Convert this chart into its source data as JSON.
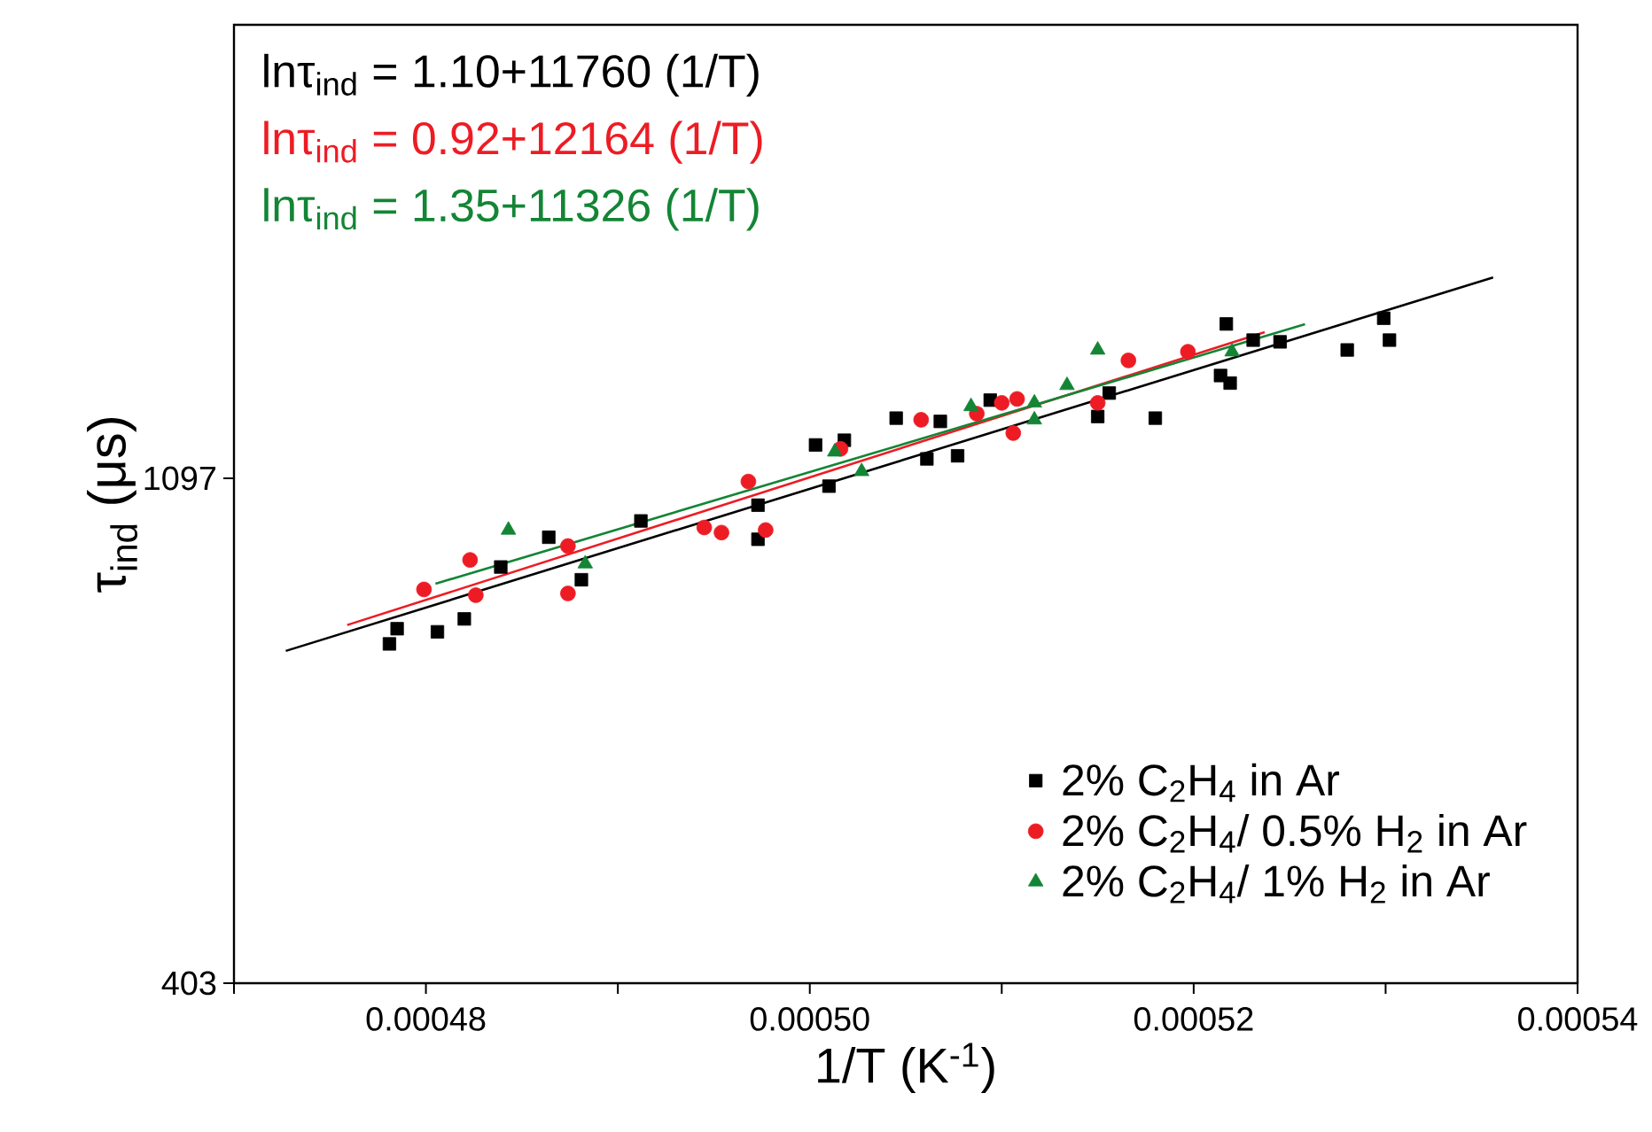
{
  "chart_data": {
    "type": "scatter",
    "xlabel": "1/T (K$^{-1}$)",
    "ylabel": "τ$_{ind}$ (μs)",
    "log": "y",
    "xlim": [
      0.00047,
      0.00054
    ],
    "ylim": [
      403,
      2697
    ],
    "xticks": [
      {
        "value": 0.00047,
        "label": null
      },
      0.00048,
      {
        "value": 0.00049,
        "label": null
      },
      {
        "value": 0.0005,
        "label": "0.00050"
      },
      {
        "value": 0.00051,
        "label": null
      },
      0.00052,
      {
        "value": 0.00053,
        "label": null
      },
      0.00054
    ],
    "yticks": [
      403,
      1097
    ],
    "legend": "bottom right",
    "grid": false,
    "annotations": [
      "lnτ$_{ind}$ = 1.10+11760 (1/T)",
      "lnτ$_{ind}$ = 0.92+12164 (1/T)",
      "lnτ$_{ind}$ = 1.35+11326 (1/T)"
    ],
    "series": [
      {
        "name": "2% C$_{2}$H$_{4}$ in Ar",
        "marker": "square",
        "color": "#000000",
        "x": [
          0.0004781,
          0.0004785,
          0.0004806,
          0.000482,
          0.0004839,
          0.0004864,
          0.0004881,
          0.0004912,
          0.0004973,
          0.0004973,
          0.000501,
          0.0005003,
          0.0005018,
          0.0005045,
          0.0005061,
          0.0005068,
          0.0005077,
          0.0005094,
          0.000515,
          0.0005156,
          0.000518,
          0.0005217,
          0.0005214,
          0.0005219,
          0.0005231,
          0.0005245,
          0.000528,
          0.0005299,
          0.0005302
        ],
        "values": [
          790,
          814,
          809,
          830,
          920,
          976,
          897,
          1008,
          1040,
          972,
          1080,
          1172,
          1183,
          1236,
          1140,
          1228,
          1147,
          1281,
          1240,
          1299,
          1236,
          1490,
          1345,
          1325,
          1443,
          1438,
          1415,
          1507,
          1443
        ]
      },
      {
        "name": "2% C$_{2}$H$_{4}$/ 0.5% H$_{2}$ in Ar",
        "marker": "circle",
        "color": "#ed1c24",
        "x": [
          0.0004799,
          0.0004823,
          0.0004826,
          0.0004874,
          0.0004874,
          0.0004945,
          0.0004954,
          0.0004968,
          0.0004977,
          0.0005016,
          0.0005058,
          0.0005087,
          0.00051,
          0.0005108,
          0.0005106,
          0.000515,
          0.0005166,
          0.0005197
        ],
        "values": [
          880,
          933,
          870,
          959,
          873,
          995,
          985,
          1090,
          990,
          1163,
          1232,
          1247,
          1274,
          1284,
          1200,
          1274,
          1386,
          1410
        ]
      },
      {
        "name": "2% C$_{2}$H$_{4}$/ 1% H$_{2}$ in Ar",
        "marker": "triangle",
        "color": "#138535",
        "x": [
          0.0004843,
          0.0004883,
          0.0005013,
          0.0005027,
          0.0005084,
          0.0005117,
          0.0005117,
          0.0005134,
          0.000515,
          0.000522
        ],
        "values": [
          990,
          926,
          1156,
          1112,
          1265,
          1274,
          1232,
          1319,
          1415,
          1410
        ]
      },
      {
        "type": "line",
        "color": "#000000",
        "x": [
          0.0004727,
          0.0005356
        ],
        "values": [
          779,
          1634
        ]
      },
      {
        "type": "line",
        "color": "#ed1c24",
        "x": [
          0.0004759,
          0.0005237
        ],
        "values": [
          820,
          1466
        ]
      },
      {
        "type": "line",
        "color": "#138535",
        "x": [
          0.0004805,
          0.0005258
        ],
        "values": [
          890,
          1489
        ]
      }
    ]
  }
}
